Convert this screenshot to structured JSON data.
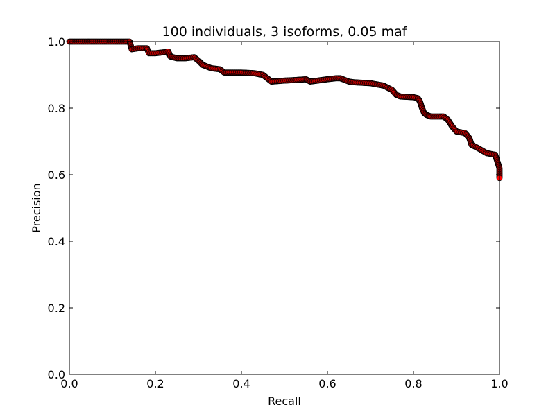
{
  "chart_data": {
    "type": "scatter",
    "title": "100 individuals, 3 isoforms, 0.05 maf",
    "xlabel": "Recall",
    "ylabel": "Precision",
    "xlim": [
      0.0,
      1.0
    ],
    "ylim": [
      0.0,
      1.0
    ],
    "x_ticks": [
      "0.0",
      "0.2",
      "0.4",
      "0.6",
      "0.8",
      "1.0"
    ],
    "y_ticks": [
      "0.0",
      "0.2",
      "0.4",
      "0.6",
      "0.8",
      "1.0"
    ],
    "grid": false,
    "legend": "none",
    "marker_fill": "#ff0000",
    "marker_edge": "#000000",
    "curve": [
      [
        0.0,
        1.0
      ],
      [
        0.14,
        1.0
      ],
      [
        0.145,
        0.977
      ],
      [
        0.16,
        0.98
      ],
      [
        0.18,
        0.98
      ],
      [
        0.185,
        0.965
      ],
      [
        0.2,
        0.965
      ],
      [
        0.22,
        0.968
      ],
      [
        0.23,
        0.97
      ],
      [
        0.235,
        0.955
      ],
      [
        0.25,
        0.95
      ],
      [
        0.27,
        0.95
      ],
      [
        0.29,
        0.953
      ],
      [
        0.3,
        0.943
      ],
      [
        0.31,
        0.93
      ],
      [
        0.33,
        0.92
      ],
      [
        0.35,
        0.917
      ],
      [
        0.36,
        0.907
      ],
      [
        0.4,
        0.907
      ],
      [
        0.43,
        0.905
      ],
      [
        0.45,
        0.9
      ],
      [
        0.46,
        0.89
      ],
      [
        0.47,
        0.88
      ],
      [
        0.5,
        0.883
      ],
      [
        0.53,
        0.885
      ],
      [
        0.55,
        0.887
      ],
      [
        0.56,
        0.88
      ],
      [
        0.6,
        0.887
      ],
      [
        0.62,
        0.89
      ],
      [
        0.63,
        0.89
      ],
      [
        0.65,
        0.88
      ],
      [
        0.66,
        0.878
      ],
      [
        0.7,
        0.875
      ],
      [
        0.73,
        0.868
      ],
      [
        0.75,
        0.855
      ],
      [
        0.76,
        0.84
      ],
      [
        0.77,
        0.835
      ],
      [
        0.8,
        0.833
      ],
      [
        0.81,
        0.83
      ],
      [
        0.815,
        0.82
      ],
      [
        0.82,
        0.8
      ],
      [
        0.825,
        0.785
      ],
      [
        0.83,
        0.78
      ],
      [
        0.84,
        0.775
      ],
      [
        0.87,
        0.775
      ],
      [
        0.88,
        0.765
      ],
      [
        0.89,
        0.745
      ],
      [
        0.9,
        0.73
      ],
      [
        0.92,
        0.725
      ],
      [
        0.93,
        0.71
      ],
      [
        0.935,
        0.69
      ],
      [
        0.95,
        0.68
      ],
      [
        0.97,
        0.665
      ],
      [
        0.99,
        0.66
      ],
      [
        0.995,
        0.64
      ],
      [
        1.0,
        0.62
      ],
      [
        1.0,
        0.59
      ]
    ]
  }
}
